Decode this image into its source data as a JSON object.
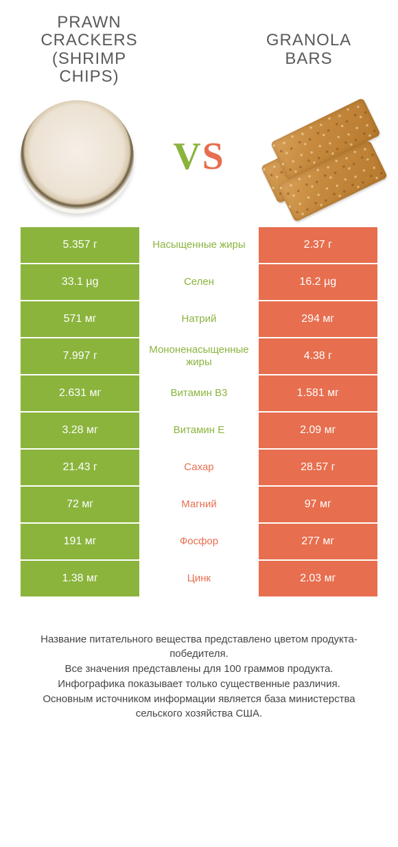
{
  "colors": {
    "green": "#8bb43d",
    "orange": "#e76e4e",
    "text_grey": "#5a5a5a"
  },
  "header": {
    "left_title": "PRAWN CRACKERS (SHRIMP CHIPS)",
    "right_title": "GRANOLA BARS",
    "vs_v": "V",
    "vs_s": "S"
  },
  "table": {
    "rows": [
      {
        "left": "5.357 г",
        "label": "Насыщенные жиры",
        "right": "2.37 г",
        "winner": "left"
      },
      {
        "left": "33.1 µg",
        "label": "Селен",
        "right": "16.2 µg",
        "winner": "left"
      },
      {
        "left": "571 мг",
        "label": "Натрий",
        "right": "294 мг",
        "winner": "left"
      },
      {
        "left": "7.997 г",
        "label": "Мононенасыщенные жиры",
        "right": "4.38 г",
        "winner": "left"
      },
      {
        "left": "2.631 мг",
        "label": "Витамин B3",
        "right": "1.581 мг",
        "winner": "left"
      },
      {
        "left": "3.28 мг",
        "label": "Витамин E",
        "right": "2.09 мг",
        "winner": "left"
      },
      {
        "left": "21.43 г",
        "label": "Сахар",
        "right": "28.57 г",
        "winner": "right"
      },
      {
        "left": "72 мг",
        "label": "Магний",
        "right": "97 мг",
        "winner": "right"
      },
      {
        "left": "191 мг",
        "label": "Фосфор",
        "right": "277 мг",
        "winner": "right"
      },
      {
        "left": "1.38 мг",
        "label": "Цинк",
        "right": "2.03 мг",
        "winner": "right"
      }
    ]
  },
  "footer": {
    "line1": "Название питательного вещества представлено цветом продукта-победителя.",
    "line2": "Все значения представлены для 100 граммов продукта.",
    "line3": "Инфографика показывает только существенные различия.",
    "line4": "Основным источником информации является база министерства сельского хозяйства США."
  }
}
